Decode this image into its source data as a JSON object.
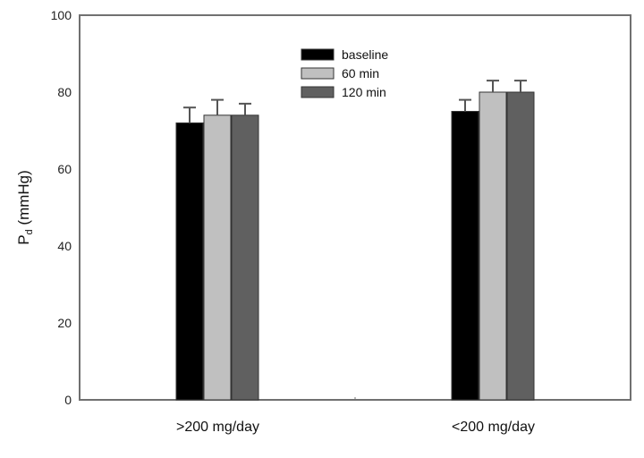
{
  "chart_data": {
    "type": "bar",
    "title": "",
    "xlabel": "",
    "ylabel": {
      "main": "P",
      "subscript": "d",
      "suffix": " (mmHg)"
    },
    "ylim": [
      0,
      100
    ],
    "yticks": [
      "0",
      "20",
      "40",
      "60",
      "80",
      "100"
    ],
    "ytick_values": [
      0,
      20,
      40,
      60,
      80,
      100
    ],
    "categories": [
      ">200 mg/day",
      "<200 mg/day"
    ],
    "series": [
      {
        "name": "baseline",
        "color": "#000000",
        "values": [
          72,
          75
        ],
        "errors": [
          4,
          3
        ]
      },
      {
        "name": "60 min",
        "color": "#c0c0c0",
        "values": [
          74,
          80
        ],
        "errors": [
          4,
          3
        ]
      },
      {
        "name": "120 min",
        "color": "#606060",
        "values": [
          74,
          80
        ],
        "errors": [
          3,
          3
        ]
      }
    ],
    "legend_position": "top-center",
    "grid": false
  }
}
